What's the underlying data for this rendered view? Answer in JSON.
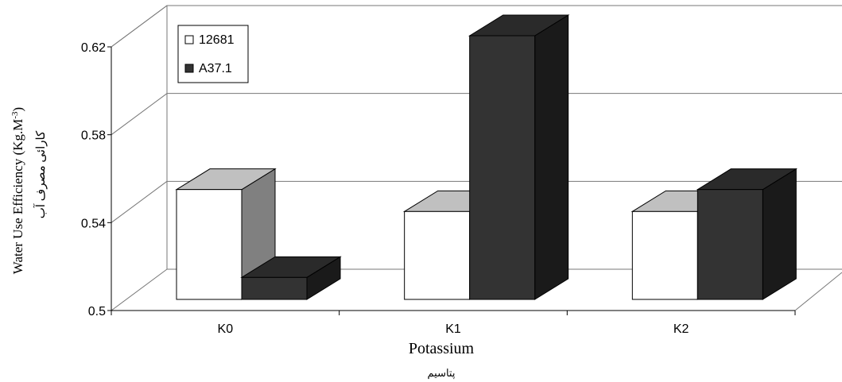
{
  "chart_data": {
    "type": "bar",
    "categories": [
      "K0",
      "K1",
      "K2"
    ],
    "series": [
      {
        "name": "12681",
        "values": [
          0.55,
          0.54,
          0.54
        ],
        "color": "#ffffff"
      },
      {
        "name": "A37.1",
        "values": [
          0.51,
          0.62,
          0.55
        ],
        "color": "#333333"
      }
    ],
    "yticks": [
      "0.5",
      "0.54",
      "0.58",
      "0.62"
    ],
    "ylim": [
      0.5,
      0.62
    ],
    "xlabel": "Potassium",
    "xlabel_secondary": "پتاسیم",
    "ylabel": "Water Use Efficiency (Kg.M",
    "ylabel_superscript": "-3",
    "ylabel_close": ")",
    "ylabel_secondary": "کارائی مصرف آب",
    "grid": true,
    "legend_position": "top-left",
    "three_d": true
  }
}
